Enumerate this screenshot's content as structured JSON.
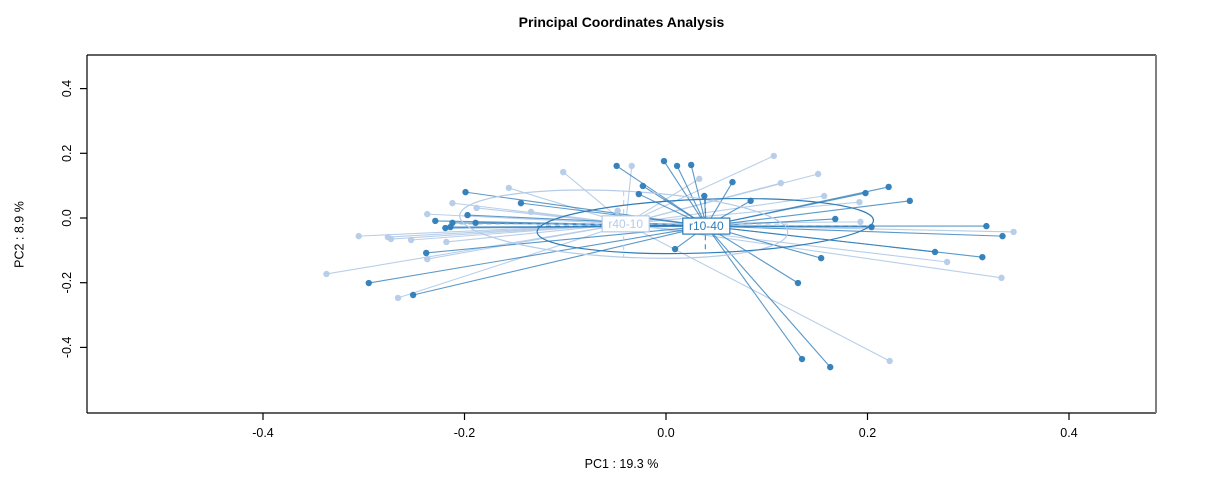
{
  "chart_data": {
    "type": "scatter",
    "subtype": "pcoa-ordination-spider",
    "title": "Principal Coordinates Analysis",
    "xlabel": "PC1 :  19.3 %",
    "ylabel": "PC2 :  8.9 %",
    "xlim": [
      -0.575,
      0.486
    ],
    "ylim": [
      -0.603,
      0.504
    ],
    "grid": false,
    "legend": "none (group labels drawn at centroids)",
    "x_ticks": {
      "values": [
        -0.4,
        -0.2,
        0.0,
        0.2,
        0.4
      ],
      "labels": [
        "-0.4",
        "-0.2",
        "0.0",
        "0.2",
        "0.4"
      ]
    },
    "y_ticks": {
      "values": [
        -0.4,
        -0.2,
        0.0,
        0.2,
        0.4
      ],
      "labels": [
        "-0.4",
        "-0.2",
        "0.0",
        "0.2",
        "0.4"
      ]
    },
    "groups": [
      {
        "name": "r40-10",
        "color": "#b5cce8",
        "centroid": [
          -0.04,
          -0.018
        ],
        "ellipse": {
          "cx": -0.042,
          "cy": -0.019,
          "rx": 0.163,
          "ry": 0.102,
          "tilt_deg": 3
        },
        "points": [
          [
            -0.156,
            0.093
          ],
          [
            -0.134,
            0.019
          ],
          [
            -0.237,
            0.012
          ],
          [
            -0.305,
            -0.056
          ],
          [
            -0.276,
            -0.059
          ],
          [
            -0.273,
            -0.065
          ],
          [
            -0.253,
            -0.068
          ],
          [
            -0.218,
            -0.074
          ],
          [
            -0.237,
            -0.127
          ],
          [
            -0.337,
            -0.173
          ],
          [
            -0.266,
            -0.247
          ],
          [
            -0.212,
            0.046
          ],
          [
            -0.102,
            0.142
          ],
          [
            -0.034,
            0.161
          ],
          [
            -0.048,
            0.022
          ],
          [
            0.107,
            0.192
          ],
          [
            0.033,
            0.121
          ],
          [
            0.114,
            0.108
          ],
          [
            0.151,
            0.136
          ],
          [
            0.157,
            0.068
          ],
          [
            0.192,
            0.049
          ],
          [
            0.193,
            -0.012
          ],
          [
            0.345,
            -0.043
          ],
          [
            0.279,
            -0.136
          ],
          [
            0.333,
            -0.185
          ],
          [
            0.222,
            -0.442
          ],
          [
            -0.188,
            0.031
          ]
        ]
      },
      {
        "name": "r10-40",
        "color": "#2d7cb8",
        "centroid": [
          0.04,
          -0.025
        ],
        "ellipse": {
          "cx": 0.039,
          "cy": -0.025,
          "rx": 0.167,
          "ry": 0.083,
          "tilt_deg": -2
        },
        "points": [
          [
            -0.199,
            0.08
          ],
          [
            -0.144,
            0.046
          ],
          [
            -0.229,
            -0.009
          ],
          [
            -0.197,
            0.009
          ],
          [
            -0.212,
            -0.015
          ],
          [
            -0.189,
            -0.015
          ],
          [
            -0.219,
            -0.031
          ],
          [
            -0.214,
            -0.028
          ],
          [
            -0.238,
            -0.108
          ],
          [
            -0.295,
            -0.201
          ],
          [
            -0.251,
            -0.238
          ],
          [
            -0.049,
            0.161
          ],
          [
            -0.002,
            0.176
          ],
          [
            0.011,
            0.161
          ],
          [
            0.025,
            0.164
          ],
          [
            -0.023,
            0.099
          ],
          [
            -0.027,
            0.074
          ],
          [
            0.038,
            0.068
          ],
          [
            0.084,
            0.053
          ],
          [
            0.009,
            -0.096
          ],
          [
            0.066,
            0.111
          ],
          [
            0.221,
            0.096
          ],
          [
            0.242,
            0.053
          ],
          [
            0.198,
            0.077
          ],
          [
            0.168,
            -0.003
          ],
          [
            0.204,
            -0.028
          ],
          [
            0.318,
            -0.025
          ],
          [
            0.334,
            -0.056
          ],
          [
            0.267,
            -0.105
          ],
          [
            0.314,
            -0.121
          ],
          [
            0.154,
            -0.124
          ],
          [
            0.131,
            -0.201
          ],
          [
            0.135,
            -0.436
          ],
          [
            0.163,
            -0.461
          ]
        ]
      }
    ],
    "colors": {
      "axis": "#000000",
      "box_right_edge": "#808080",
      "background": "#ffffff"
    }
  }
}
